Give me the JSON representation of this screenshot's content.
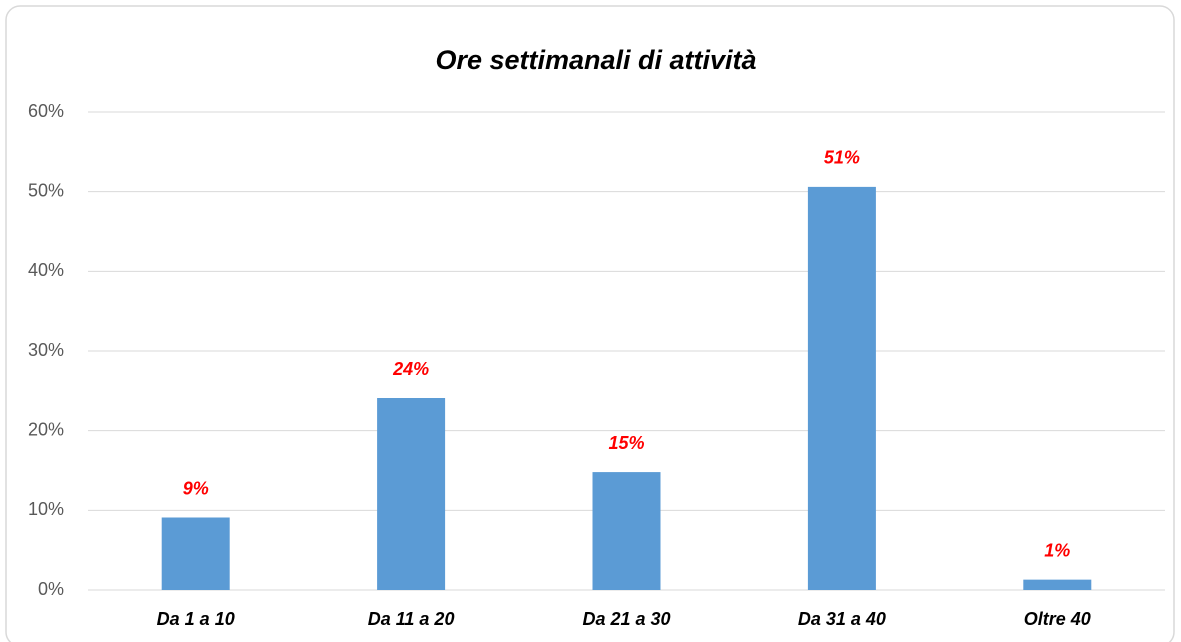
{
  "chart_data": {
    "type": "bar",
    "title": "Ore settimanali di attività",
    "categories": [
      "Da 1 a 10",
      "Da 11 a 20",
      "Da 21 a 30",
      "Da 31 a 40",
      "Oltre 40"
    ],
    "values": [
      9.1,
      24.1,
      14.8,
      50.6,
      1.3
    ],
    "value_labels": [
      "9%",
      "24%",
      "15%",
      "51%",
      "1%"
    ],
    "color": "#5b9bd5",
    "label_color": "#ff0000",
    "ylim": [
      0,
      60
    ],
    "yticks": [
      {
        "value": 0,
        "label": "0%"
      },
      {
        "value": 10,
        "label": "10%"
      },
      {
        "value": 20,
        "label": "20%"
      },
      {
        "value": 30,
        "label": "30%"
      },
      {
        "value": 40,
        "label": "40%"
      },
      {
        "value": 50,
        "label": "50%"
      },
      {
        "value": 60,
        "label": "60%"
      }
    ],
    "grid": true
  }
}
